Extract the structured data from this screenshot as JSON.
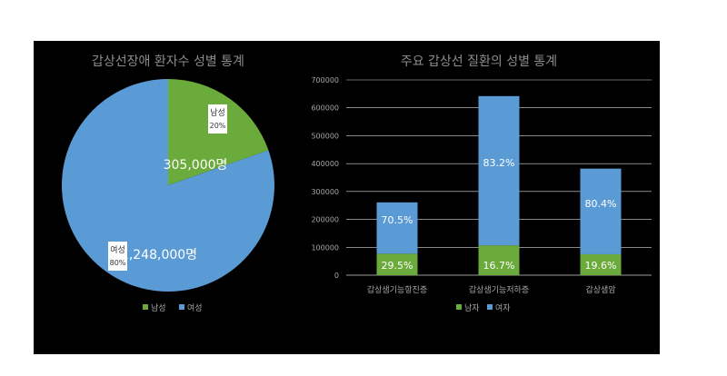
{
  "chart_data": [
    {
      "type": "pie",
      "title": "갑상선장애 환자수 성별 통계",
      "categories": [
        "남성",
        "여성"
      ],
      "values": [
        305000,
        1248000
      ],
      "value_labels": [
        "305,000명",
        "1,248,000명"
      ],
      "percent_labels": [
        "20%",
        "80%"
      ],
      "colors": [
        "#6aab3b",
        "#5b9bd5"
      ],
      "legend": {
        "position": "bottom",
        "entries": [
          "남성",
          "여성"
        ]
      }
    },
    {
      "type": "bar",
      "stacked": true,
      "title": "주요 갑상선 질환의 성별 통계",
      "categories": [
        "갑상샘기능항진증",
        "갑상샘기능저하증",
        "갑상샘암"
      ],
      "series": [
        {
          "name": "남자",
          "values": [
            77000,
            107000,
            75000
          ],
          "labels": [
            "29.5%",
            "16.7%",
            "19.6%"
          ],
          "color": "#6aab3b"
        },
        {
          "name": "여자",
          "values": [
            184000,
            535000,
            307000
          ],
          "labels": [
            "70.5%",
            "83.2%",
            "80.4%"
          ],
          "color": "#5b9bd5"
        }
      ],
      "ylim": [
        0,
        700000
      ],
      "yticks": [
        "0",
        "100000",
        "200000",
        "300000",
        "400000",
        "500000",
        "600000",
        "700000"
      ],
      "grid": true,
      "legend": {
        "position": "bottom",
        "entries": [
          "남자",
          "여자"
        ]
      }
    }
  ]
}
